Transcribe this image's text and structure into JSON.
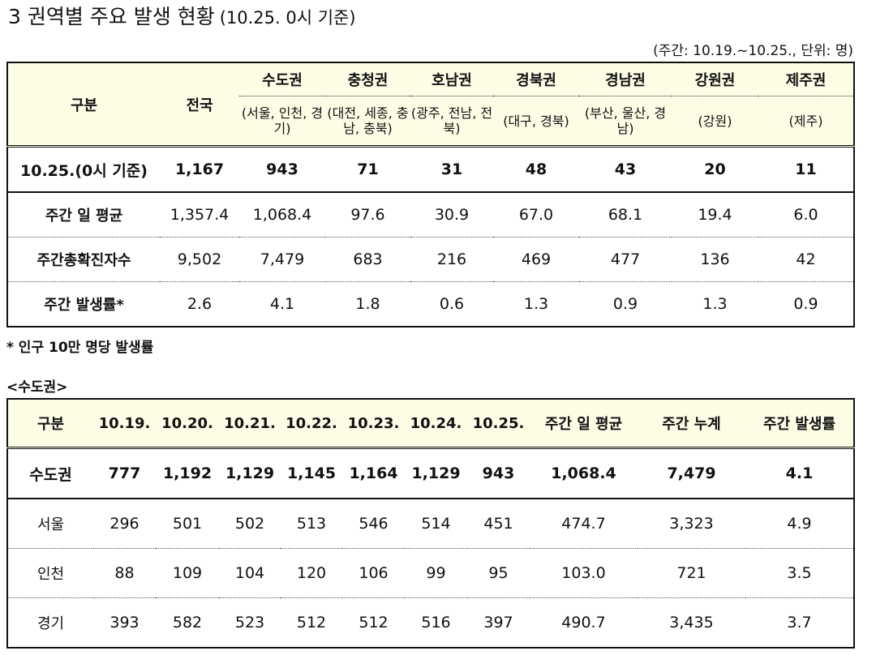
{
  "title": {
    "main": "3  권역별 주요 발생 현황",
    "sub": "(10.25. 0시 기준)"
  },
  "unit_note": "(주간: 10.19.~10.25., 단위: 명)",
  "table1": {
    "header_label": "구분",
    "national_label": "전국",
    "regions": [
      {
        "name": "수도권",
        "detail": "(서울, 인천, 경기)"
      },
      {
        "name": "충청권",
        "detail": "(대전, 세종, 충남, 충북)"
      },
      {
        "name": "호남권",
        "detail": "(광주, 전남, 전북)"
      },
      {
        "name": "경북권",
        "detail": "(대구, 경북)"
      },
      {
        "name": "경남권",
        "detail": "(부산, 울산, 경남)"
      },
      {
        "name": "강원권",
        "detail": "(강원)"
      },
      {
        "name": "제주권",
        "detail": "(제주)"
      }
    ],
    "rows": [
      {
        "label": "10.25.(0시 기준)",
        "values": [
          "1,167",
          "943",
          "71",
          "31",
          "48",
          "43",
          "20",
          "11"
        ]
      },
      {
        "label": "주간 일 평균",
        "values": [
          "1,357.4",
          "1,068.4",
          "97.6",
          "30.9",
          "67.0",
          "68.1",
          "19.4",
          "6.0"
        ]
      },
      {
        "label": "주간총확진자수",
        "values": [
          "9,502",
          "7,479",
          "683",
          "216",
          "469",
          "477",
          "136",
          "42"
        ]
      },
      {
        "label": "주간 발생률*",
        "values": [
          "2.6",
          "4.1",
          "1.8",
          "0.6",
          "1.3",
          "0.9",
          "1.3",
          "0.9"
        ]
      }
    ]
  },
  "footnote": "* 인구 10만 명당 발생률",
  "section_label": "<수도권>",
  "table2": {
    "headers": [
      "구분",
      "10.19.",
      "10.20.",
      "10.21.",
      "10.22.",
      "10.23.",
      "10.24.",
      "10.25.",
      "주간 일 평균",
      "주간 누계",
      "주간 발생률"
    ],
    "rows": [
      {
        "label": "수도권",
        "values": [
          "777",
          "1,192",
          "1,129",
          "1,145",
          "1,164",
          "1,129",
          "943",
          "1,068.4",
          "7,479",
          "4.1"
        ]
      },
      {
        "label": "서울",
        "values": [
          "296",
          "501",
          "502",
          "513",
          "546",
          "514",
          "451",
          "474.7",
          "3,323",
          "4.9"
        ]
      },
      {
        "label": "인천",
        "values": [
          "88",
          "109",
          "104",
          "120",
          "106",
          "99",
          "95",
          "103.0",
          "721",
          "3.5"
        ]
      },
      {
        "label": "경기",
        "values": [
          "393",
          "582",
          "523",
          "512",
          "512",
          "516",
          "397",
          "490.7",
          "3,435",
          "3.7"
        ]
      }
    ]
  }
}
